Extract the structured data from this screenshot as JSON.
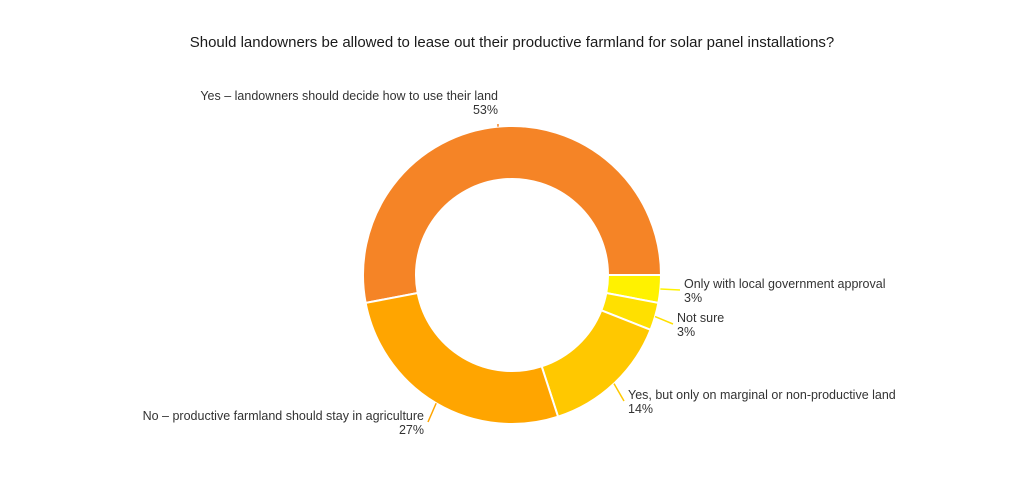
{
  "chart_data": {
    "type": "pie",
    "title": "Should landowners be allowed to lease out their productive farmland for solar panel installations?",
    "unit": "%",
    "slices": [
      {
        "label": "Yes – landowners should decide how to use their land",
        "value": 53,
        "display": "53%",
        "color": "#F58426"
      },
      {
        "label": "Only with local government approval",
        "value": 3,
        "display": "3%",
        "color": "#FFF200"
      },
      {
        "label": "Not sure",
        "value": 3,
        "display": "3%",
        "color": "#FFE000"
      },
      {
        "label": "Yes, but only on marginal or non-productive land",
        "value": 14,
        "display": "14%",
        "color": "#FFC800"
      },
      {
        "label": "No – productive farmland should stay in agriculture",
        "value": 27,
        "display": "27%",
        "color": "#FFA500"
      }
    ],
    "legend": "none"
  }
}
